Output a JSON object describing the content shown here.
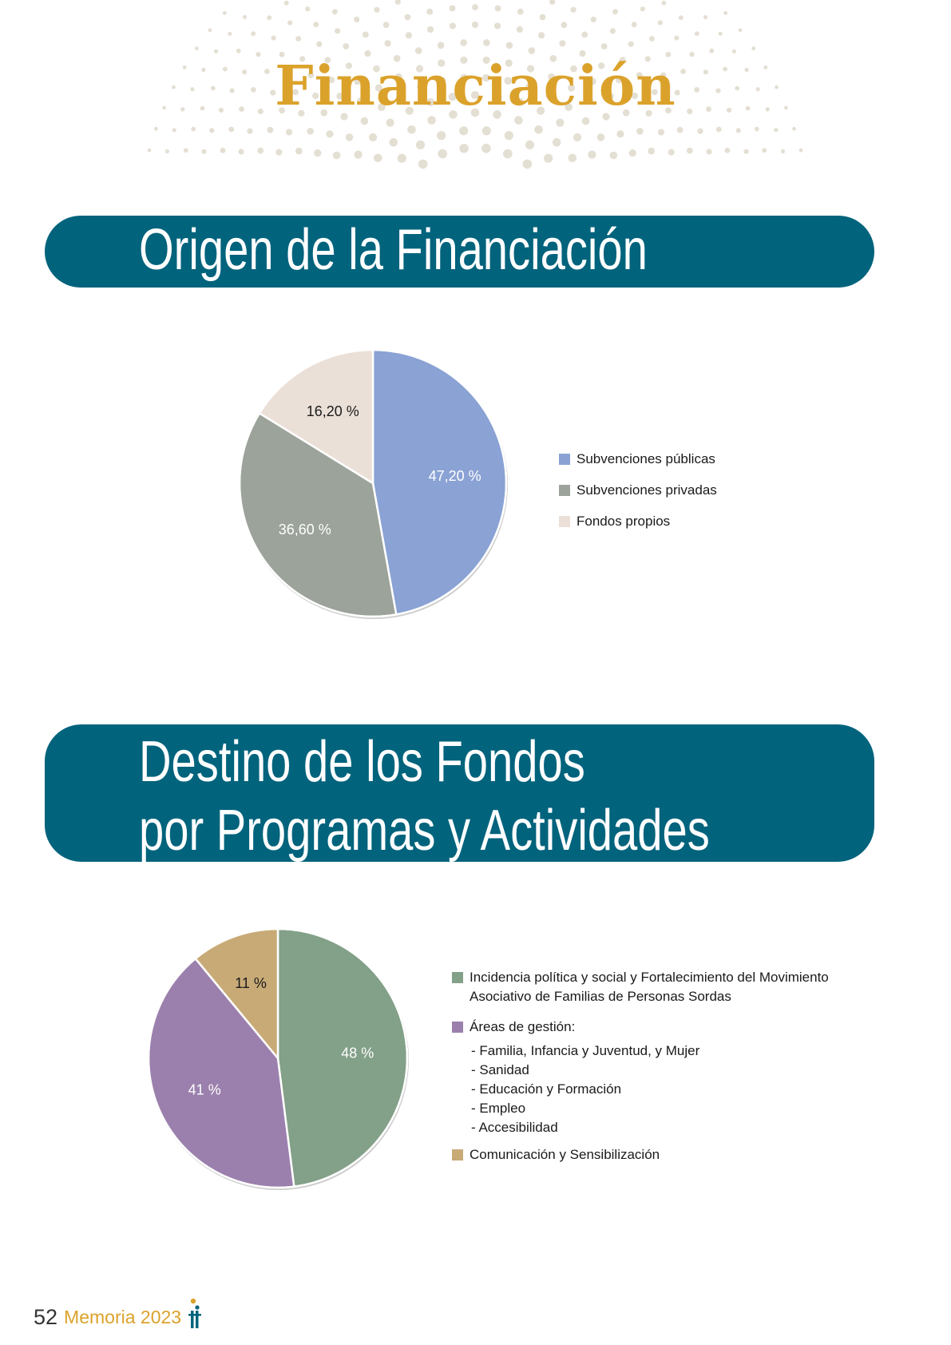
{
  "page": {
    "title": "Financiación",
    "footer": {
      "page_number": "52",
      "publication": "Memoria 2023"
    },
    "colors": {
      "accent": "#dba22b",
      "banner": "#01637c"
    }
  },
  "sections": [
    {
      "heading": "Origen de la Financiación"
    },
    {
      "heading_line1": "Destino de los Fondos",
      "heading_line2": "por Programas y Actividades"
    }
  ],
  "chart_data": [
    {
      "type": "pie",
      "title": "",
      "categories": [
        "Subvenciones públicas",
        "Subvenciones privadas",
        "Fondos propios"
      ],
      "values": [
        47.2,
        36.6,
        16.2
      ],
      "labels": [
        "47,20 %",
        "36,60 %",
        "16,20 %"
      ],
      "colors": [
        "#8aa2d4",
        "#9ca39a",
        "#ebe0d8"
      ],
      "label_colors": [
        "#ffffff",
        "#ffffff",
        "#1a1a1a"
      ],
      "legend": "right"
    },
    {
      "type": "pie",
      "title": "",
      "categories": [
        "Incidencia política y social y Fortalecimiento del Movimiento Asociativo de Familias de Personas Sordas",
        "Áreas de gestión:",
        "Comunicación y Sensibilización"
      ],
      "values": [
        48,
        41,
        11
      ],
      "labels": [
        "48 %",
        "41 %",
        "11 %"
      ],
      "colors": [
        "#83a088",
        "#9b80ad",
        "#c8aa77"
      ],
      "label_colors": [
        "#ffffff",
        "#ffffff",
        "#1a1a1a"
      ],
      "subitems": [
        "- Familia, Infancia y Juventud, y Mujer",
        "- Sanidad",
        "- Educación y Formación",
        "- Empleo",
        "- Accesibilidad"
      ],
      "legend": "right"
    }
  ]
}
